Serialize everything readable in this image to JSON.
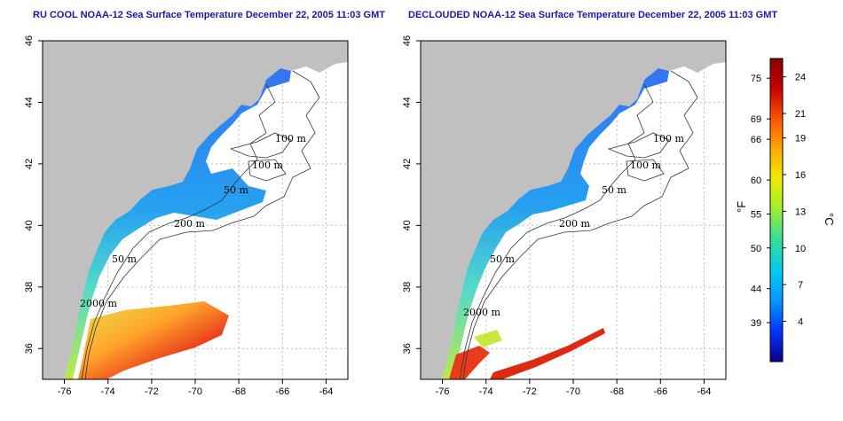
{
  "panels": [
    {
      "title": "RU COOL NOAA-12 Sea Surface Temperature December 22, 2005 11:03 GMT",
      "contour_labels": [
        "100 m",
        "100 m",
        "50 m",
        "200 m",
        "50 m",
        "2000 m"
      ]
    },
    {
      "title": "DECLOUDED NOAA-12 Sea Surface Temperature December 22, 2005 11:03 GMT",
      "contour_labels": [
        "100 m",
        "100 m",
        "50 m",
        "200 m",
        "50 m",
        "2000 m"
      ]
    }
  ],
  "axes": {
    "x_ticks": [
      "-76",
      "-74",
      "-72",
      "-70",
      "-68",
      "-66",
      "-64"
    ],
    "y_ticks": [
      "36",
      "38",
      "40",
      "42",
      "44",
      "46"
    ],
    "xlim": [
      -77,
      -63
    ],
    "ylim": [
      35,
      46
    ]
  },
  "colorbar": {
    "f_unit": "°F",
    "c_unit": "°C",
    "f_ticks": [
      "75",
      "69",
      "66",
      "60",
      "55",
      "50",
      "44",
      "39"
    ],
    "c_ticks": [
      "24",
      "21",
      "19",
      "16",
      "13",
      "10",
      "7",
      "4"
    ],
    "colors": [
      "#08008c",
      "#0033ff",
      "#0099ff",
      "#00ccee",
      "#33dd99",
      "#99ee33",
      "#eeee00",
      "#ffaa00",
      "#ff5500",
      "#cc0000",
      "#880000"
    ]
  },
  "colors": {
    "land": "#c0c0c0",
    "title": "#1a1aa6",
    "contour": "#333333",
    "grid": "#bbbbbb"
  }
}
